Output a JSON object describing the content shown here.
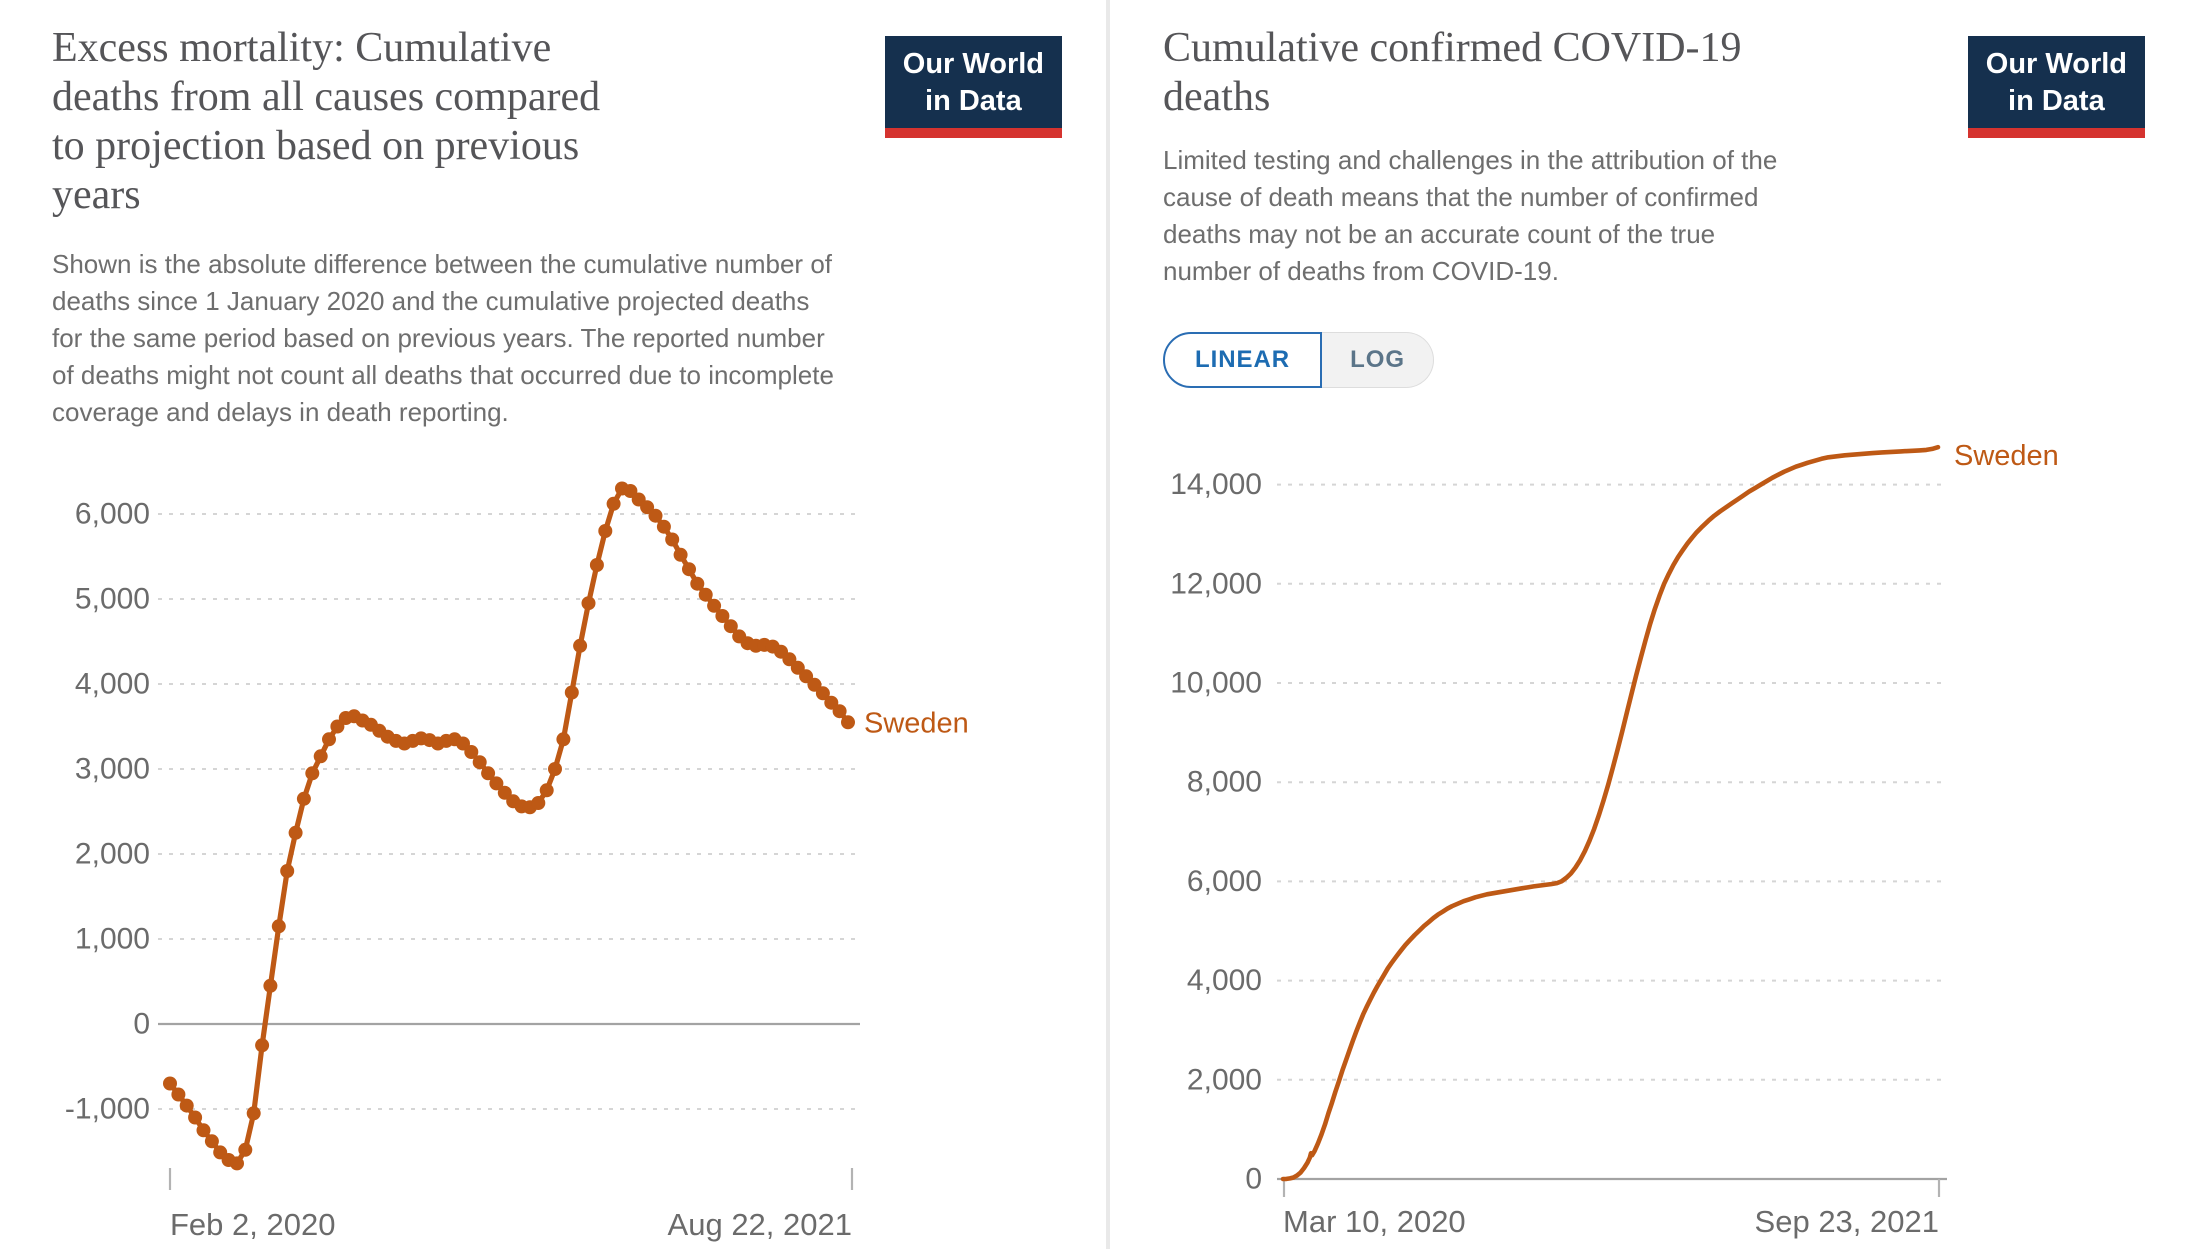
{
  "logo": {
    "text": "Our World\nin Data"
  },
  "left_panel": {
    "title": "Excess mortality: Cumulative\ndeaths from all causes compared\nto projection based on previous\nyears",
    "subtitle": "Shown is the absolute difference between the cumulative number of\ndeaths since 1 January 2020 and the cumulative projected deaths\nfor the same period based on previous years. The reported number\nof deaths might not count all deaths that occurred due to incomplete\ncoverage and delays in death reporting.",
    "entity_label": "Sweden"
  },
  "right_panel": {
    "title": "Cumulative confirmed COVID-19\ndeaths",
    "subtitle": "Limited testing and challenges in the attribution of the\ncause of death means that the number of confirmed\ndeaths may not be an accurate count of the true\nnumber of deaths from COVID-19.",
    "toggle": {
      "linear": "LINEAR",
      "log": "LOG",
      "active": "LINEAR"
    },
    "entity_label": "Sweden"
  },
  "style": {
    "line_color": "#be5915",
    "grid_color": "#d5d5d5",
    "zero_line_color": "#a3a3a3",
    "tick_color": "#b3b3b3",
    "axis_text_color": "#6b6b6b",
    "logo_bg": "#15304e",
    "logo_red": "#d5332f",
    "toggle_active_color": "#1d6cb2"
  },
  "chart_data": [
    {
      "type": "line",
      "title": "Excess mortality: Cumulative deaths from all causes compared to projection based on previous years",
      "entity": "Sweden",
      "line_color": "#be5915",
      "markers": true,
      "grid": true,
      "legend_position": "end-of-line",
      "x_start_label": "Feb 2, 2020",
      "x_end_label": "Aug 22, 2021",
      "x_interval_days": 7,
      "x_span_days": 567,
      "y_ticks": [
        6000,
        5000,
        4000,
        3000,
        2000,
        1000,
        0,
        -1000
      ],
      "ylim": [
        -1650,
        6300
      ],
      "values": [
        -700,
        -830,
        -960,
        -1100,
        -1250,
        -1380,
        -1510,
        -1600,
        -1640,
        -1480,
        -1050,
        -250,
        450,
        1150,
        1800,
        2250,
        2650,
        2950,
        3150,
        3350,
        3500,
        3600,
        3620,
        3570,
        3520,
        3450,
        3380,
        3330,
        3300,
        3330,
        3360,
        3340,
        3300,
        3330,
        3350,
        3300,
        3200,
        3080,
        2950,
        2830,
        2720,
        2620,
        2560,
        2550,
        2600,
        2750,
        3000,
        3350,
        3900,
        4450,
        4950,
        5400,
        5800,
        6120,
        6300,
        6270,
        6170,
        6080,
        5980,
        5850,
        5700,
        5520,
        5350,
        5180,
        5050,
        4920,
        4800,
        4680,
        4560,
        4480,
        4450,
        4460,
        4440,
        4380,
        4290,
        4190,
        4090,
        3990,
        3890,
        3780,
        3680,
        3550
      ]
    },
    {
      "type": "line",
      "title": "Cumulative confirmed COVID-19 deaths",
      "entity": "Sweden",
      "line_color": "#be5915",
      "markers": false,
      "grid": true,
      "legend_position": "end-of-line",
      "x_start_label": "Mar 10, 2020",
      "x_end_label": "Sep 23, 2021",
      "x_span_days": 562,
      "y_ticks": [
        14000,
        12000,
        10000,
        8000,
        6000,
        4000,
        2000,
        0
      ],
      "ylim": [
        0,
        14755
      ],
      "points": [
        [
          0,
          0
        ],
        [
          3,
          3
        ],
        [
          6,
          12
        ],
        [
          9,
          30
        ],
        [
          12,
          70
        ],
        [
          15,
          130
        ],
        [
          18,
          220
        ],
        [
          21,
          330
        ],
        [
          23,
          430
        ],
        [
          24,
          520
        ],
        [
          25,
          480
        ],
        [
          27,
          560
        ],
        [
          30,
          720
        ],
        [
          33,
          900
        ],
        [
          36,
          1100
        ],
        [
          39,
          1330
        ],
        [
          42,
          1540
        ],
        [
          45,
          1760
        ],
        [
          48,
          1970
        ],
        [
          51,
          2190
        ],
        [
          54,
          2390
        ],
        [
          57,
          2590
        ],
        [
          60,
          2790
        ],
        [
          63,
          2980
        ],
        [
          66,
          3160
        ],
        [
          69,
          3330
        ],
        [
          72,
          3480
        ],
        [
          75,
          3620
        ],
        [
          78,
          3760
        ],
        [
          81,
          3890
        ],
        [
          84,
          4010
        ],
        [
          87,
          4130
        ],
        [
          90,
          4250
        ],
        [
          93,
          4350
        ],
        [
          97,
          4480
        ],
        [
          101,
          4600
        ],
        [
          105,
          4720
        ],
        [
          109,
          4820
        ],
        [
          113,
          4920
        ],
        [
          117,
          5010
        ],
        [
          121,
          5100
        ],
        [
          125,
          5180
        ],
        [
          129,
          5260
        ],
        [
          133,
          5330
        ],
        [
          137,
          5390
        ],
        [
          141,
          5450
        ],
        [
          145,
          5500
        ],
        [
          150,
          5550
        ],
        [
          155,
          5600
        ],
        [
          160,
          5640
        ],
        [
          165,
          5680
        ],
        [
          170,
          5710
        ],
        [
          175,
          5740
        ],
        [
          180,
          5760
        ],
        [
          185,
          5780
        ],
        [
          190,
          5800
        ],
        [
          195,
          5820
        ],
        [
          200,
          5840
        ],
        [
          205,
          5860
        ],
        [
          210,
          5880
        ],
        [
          215,
          5900
        ],
        [
          220,
          5915
        ],
        [
          225,
          5930
        ],
        [
          230,
          5945
        ],
        [
          235,
          5965
        ],
        [
          239,
          6000
        ],
        [
          243,
          6070
        ],
        [
          247,
          6160
        ],
        [
          251,
          6280
        ],
        [
          255,
          6430
        ],
        [
          259,
          6610
        ],
        [
          263,
          6820
        ],
        [
          267,
          7060
        ],
        [
          271,
          7330
        ],
        [
          275,
          7630
        ],
        [
          279,
          7950
        ],
        [
          283,
          8290
        ],
        [
          287,
          8650
        ],
        [
          291,
          9020
        ],
        [
          295,
          9400
        ],
        [
          299,
          9780
        ],
        [
          303,
          10150
        ],
        [
          307,
          10510
        ],
        [
          311,
          10860
        ],
        [
          315,
          11190
        ],
        [
          319,
          11490
        ],
        [
          323,
          11760
        ],
        [
          327,
          12000
        ],
        [
          331,
          12200
        ],
        [
          335,
          12380
        ],
        [
          339,
          12540
        ],
        [
          343,
          12680
        ],
        [
          347,
          12810
        ],
        [
          351,
          12930
        ],
        [
          355,
          13040
        ],
        [
          360,
          13160
        ],
        [
          365,
          13270
        ],
        [
          370,
          13370
        ],
        [
          375,
          13460
        ],
        [
          380,
          13540
        ],
        [
          385,
          13620
        ],
        [
          390,
          13700
        ],
        [
          395,
          13780
        ],
        [
          400,
          13860
        ],
        [
          405,
          13930
        ],
        [
          410,
          14000
        ],
        [
          415,
          14070
        ],
        [
          420,
          14140
        ],
        [
          425,
          14200
        ],
        [
          430,
          14260
        ],
        [
          435,
          14310
        ],
        [
          440,
          14360
        ],
        [
          445,
          14400
        ],
        [
          450,
          14440
        ],
        [
          456,
          14480
        ],
        [
          462,
          14520
        ],
        [
          468,
          14550
        ],
        [
          475,
          14570
        ],
        [
          482,
          14590
        ],
        [
          490,
          14605
        ],
        [
          498,
          14620
        ],
        [
          506,
          14635
        ],
        [
          514,
          14650
        ],
        [
          522,
          14660
        ],
        [
          530,
          14670
        ],
        [
          538,
          14680
        ],
        [
          546,
          14690
        ],
        [
          552,
          14700
        ],
        [
          557,
          14720
        ],
        [
          562,
          14755
        ]
      ]
    }
  ]
}
